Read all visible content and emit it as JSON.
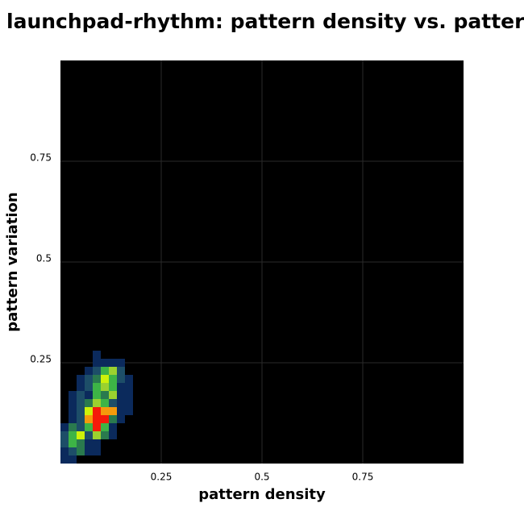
{
  "chart_data": {
    "type": "heatmap",
    "title": "launchpad-rhythm: pattern density vs. pattern",
    "x_label": "pattern density",
    "y_label": "pattern variation",
    "xlim": [
      0,
      1
    ],
    "ylim": [
      0,
      1
    ],
    "xticks": [
      0.25,
      0.5,
      0.75
    ],
    "yticks": [
      0.25,
      0.5,
      0.75
    ],
    "grid": true,
    "background": "#000000",
    "grid_color": "#2a2a2a",
    "bin_size": 0.02,
    "colorscale": [
      "#0b2a5c",
      "#1d4e68",
      "#2a7a4e",
      "#3db446",
      "#9bd12f",
      "#cdf20a",
      "#f59a0c",
      "#f51a0a"
    ],
    "cells": [
      [
        0,
        0,
        1
      ],
      [
        0.02,
        0,
        1
      ],
      [
        0,
        0.02,
        1
      ],
      [
        0.02,
        0.02,
        2
      ],
      [
        0.04,
        0.02,
        3
      ],
      [
        0.06,
        0.02,
        1
      ],
      [
        0.08,
        0.02,
        1
      ],
      [
        0,
        0.04,
        2
      ],
      [
        0.02,
        0.04,
        4
      ],
      [
        0.04,
        0.04,
        3
      ],
      [
        0.06,
        0.04,
        1
      ],
      [
        0.08,
        0.04,
        1
      ],
      [
        0,
        0.06,
        2
      ],
      [
        0.02,
        0.06,
        4
      ],
      [
        0.04,
        0.06,
        6
      ],
      [
        0.06,
        0.06,
        2
      ],
      [
        0.08,
        0.06,
        5
      ],
      [
        0.1,
        0.06,
        3
      ],
      [
        0.12,
        0.06,
        1
      ],
      [
        0,
        0.08,
        1
      ],
      [
        0.02,
        0.08,
        3
      ],
      [
        0.04,
        0.08,
        2
      ],
      [
        0.06,
        0.08,
        4
      ],
      [
        0.08,
        0.08,
        8
      ],
      [
        0.1,
        0.08,
        4
      ],
      [
        0.12,
        0.08,
        1
      ],
      [
        0.02,
        0.1,
        1
      ],
      [
        0.04,
        0.1,
        2
      ],
      [
        0.06,
        0.1,
        7
      ],
      [
        0.08,
        0.1,
        8
      ],
      [
        0.1,
        0.1,
        8
      ],
      [
        0.12,
        0.1,
        3
      ],
      [
        0.14,
        0.1,
        1
      ],
      [
        0.02,
        0.12,
        1
      ],
      [
        0.04,
        0.12,
        2
      ],
      [
        0.06,
        0.12,
        6
      ],
      [
        0.08,
        0.12,
        8
      ],
      [
        0.1,
        0.12,
        7
      ],
      [
        0.12,
        0.12,
        7
      ],
      [
        0.14,
        0.12,
        1
      ],
      [
        0.16,
        0.12,
        1
      ],
      [
        0.02,
        0.14,
        1
      ],
      [
        0.04,
        0.14,
        2
      ],
      [
        0.06,
        0.14,
        3
      ],
      [
        0.08,
        0.14,
        5
      ],
      [
        0.1,
        0.14,
        4
      ],
      [
        0.12,
        0.14,
        2
      ],
      [
        0.14,
        0.14,
        1
      ],
      [
        0.16,
        0.14,
        1
      ],
      [
        0.02,
        0.16,
        1
      ],
      [
        0.04,
        0.16,
        2
      ],
      [
        0.06,
        0.16,
        1
      ],
      [
        0.08,
        0.16,
        4
      ],
      [
        0.1,
        0.16,
        3
      ],
      [
        0.12,
        0.16,
        5
      ],
      [
        0.14,
        0.16,
        1
      ],
      [
        0.16,
        0.16,
        1
      ],
      [
        0.04,
        0.18,
        1
      ],
      [
        0.06,
        0.18,
        2
      ],
      [
        0.08,
        0.18,
        4
      ],
      [
        0.1,
        0.18,
        5
      ],
      [
        0.12,
        0.18,
        4
      ],
      [
        0.14,
        0.18,
        1
      ],
      [
        0.16,
        0.18,
        1
      ],
      [
        0.04,
        0.2,
        1
      ],
      [
        0.06,
        0.2,
        2
      ],
      [
        0.08,
        0.2,
        3
      ],
      [
        0.1,
        0.2,
        6
      ],
      [
        0.12,
        0.2,
        4
      ],
      [
        0.14,
        0.2,
        2
      ],
      [
        0.16,
        0.2,
        1
      ],
      [
        0.06,
        0.22,
        1
      ],
      [
        0.08,
        0.22,
        2
      ],
      [
        0.1,
        0.22,
        4
      ],
      [
        0.12,
        0.22,
        5
      ],
      [
        0.14,
        0.22,
        2
      ],
      [
        0.08,
        0.24,
        1
      ],
      [
        0.1,
        0.24,
        1
      ],
      [
        0.12,
        0.24,
        1
      ],
      [
        0.14,
        0.24,
        1
      ],
      [
        0.08,
        0.26,
        1
      ]
    ]
  }
}
